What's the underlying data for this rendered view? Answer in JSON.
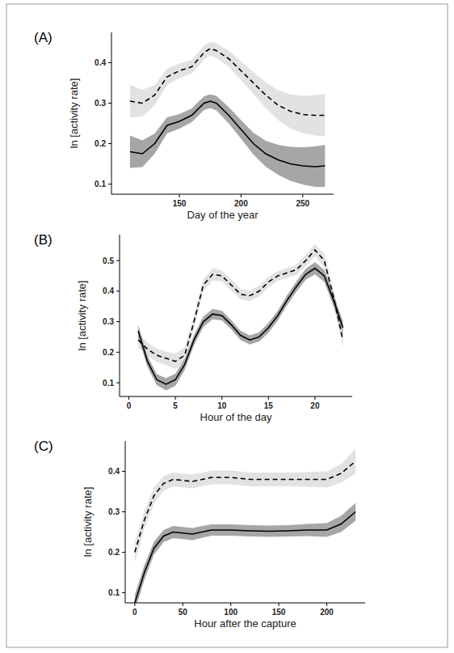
{
  "chart_data": [
    {
      "type": "line",
      "title": "(A)",
      "x_label": "Day of the year",
      "y_label": "ln [activity rate]",
      "x": [
        110,
        120,
        130,
        140,
        150,
        160,
        170,
        175,
        180,
        190,
        200,
        210,
        220,
        230,
        240,
        250,
        260,
        268
      ],
      "xlim": [
        95,
        275
      ],
      "xticks": [
        150,
        200,
        250
      ],
      "ylim": [
        0.075,
        0.475
      ],
      "yticks": [
        0.1,
        0.2,
        0.3,
        0.4
      ],
      "series": [
        {
          "color": "#000000",
          "line_style": "dashed",
          "values": [
            0.305,
            0.3,
            0.32,
            0.365,
            0.38,
            0.39,
            0.425,
            0.435,
            0.43,
            0.41,
            0.38,
            0.35,
            0.32,
            0.295,
            0.28,
            0.272,
            0.27,
            0.27
          ],
          "upper": [
            0.345,
            0.333,
            0.345,
            0.385,
            0.398,
            0.407,
            0.442,
            0.452,
            0.448,
            0.43,
            0.403,
            0.377,
            0.352,
            0.332,
            0.322,
            0.318,
            0.32,
            0.322
          ],
          "lower": [
            0.265,
            0.267,
            0.295,
            0.345,
            0.362,
            0.373,
            0.408,
            0.418,
            0.412,
            0.39,
            0.357,
            0.323,
            0.288,
            0.258,
            0.238,
            0.226,
            0.22,
            0.218
          ]
        },
        {
          "color": "#000000",
          "line_style": "solid",
          "values": [
            0.18,
            0.175,
            0.2,
            0.245,
            0.255,
            0.27,
            0.3,
            0.305,
            0.3,
            0.27,
            0.235,
            0.2,
            0.175,
            0.16,
            0.15,
            0.145,
            0.143,
            0.145
          ],
          "upper": [
            0.22,
            0.208,
            0.225,
            0.265,
            0.273,
            0.287,
            0.317,
            0.322,
            0.318,
            0.29,
            0.258,
            0.227,
            0.207,
            0.197,
            0.192,
            0.191,
            0.193,
            0.197
          ],
          "lower": [
            0.14,
            0.142,
            0.175,
            0.225,
            0.237,
            0.253,
            0.283,
            0.288,
            0.282,
            0.25,
            0.212,
            0.173,
            0.143,
            0.123,
            0.108,
            0.099,
            0.093,
            0.093
          ]
        }
      ]
    },
    {
      "type": "line",
      "title": "(B)",
      "x_label": "Hour of the day",
      "y_label": "ln [activity rate]",
      "x": [
        1,
        2,
        3,
        4,
        5,
        6,
        7,
        8,
        9,
        10,
        11,
        12,
        13,
        14,
        15,
        16,
        17,
        18,
        19,
        20,
        21,
        22,
        23
      ],
      "xlim": [
        -1,
        24
      ],
      "xticks": [
        0,
        5,
        10,
        15,
        20
      ],
      "ylim": [
        0.055,
        0.585
      ],
      "yticks": [
        0.1,
        0.2,
        0.3,
        0.4,
        0.5
      ],
      "series": [
        {
          "color": "#000000",
          "line_style": "dashed",
          "values": [
            0.24,
            0.21,
            0.19,
            0.18,
            0.17,
            0.19,
            0.3,
            0.42,
            0.455,
            0.45,
            0.42,
            0.39,
            0.385,
            0.4,
            0.43,
            0.45,
            0.46,
            0.47,
            0.5,
            0.535,
            0.5,
            0.38,
            0.24
          ],
          "upper": [
            0.265,
            0.232,
            0.212,
            0.202,
            0.195,
            0.215,
            0.322,
            0.44,
            0.475,
            0.468,
            0.438,
            0.407,
            0.402,
            0.418,
            0.447,
            0.466,
            0.476,
            0.487,
            0.518,
            0.555,
            0.522,
            0.402,
            0.265
          ],
          "lower": [
            0.215,
            0.188,
            0.168,
            0.158,
            0.145,
            0.165,
            0.278,
            0.4,
            0.435,
            0.432,
            0.402,
            0.373,
            0.368,
            0.382,
            0.413,
            0.434,
            0.444,
            0.453,
            0.482,
            0.515,
            0.478,
            0.358,
            0.215
          ]
        },
        {
          "color": "#000000",
          "line_style": "solid",
          "values": [
            0.27,
            0.17,
            0.11,
            0.095,
            0.11,
            0.16,
            0.24,
            0.3,
            0.325,
            0.32,
            0.29,
            0.255,
            0.24,
            0.25,
            0.28,
            0.32,
            0.37,
            0.415,
            0.455,
            0.475,
            0.45,
            0.37,
            0.28
          ],
          "upper": [
            0.29,
            0.188,
            0.128,
            0.115,
            0.13,
            0.178,
            0.257,
            0.317,
            0.342,
            0.336,
            0.305,
            0.27,
            0.255,
            0.265,
            0.296,
            0.336,
            0.386,
            0.432,
            0.473,
            0.495,
            0.47,
            0.39,
            0.3
          ],
          "lower": [
            0.25,
            0.152,
            0.092,
            0.075,
            0.09,
            0.142,
            0.223,
            0.283,
            0.308,
            0.304,
            0.275,
            0.24,
            0.225,
            0.235,
            0.264,
            0.304,
            0.354,
            0.398,
            0.437,
            0.455,
            0.43,
            0.35,
            0.26
          ]
        }
      ]
    },
    {
      "type": "line",
      "title": "(C)",
      "x_label": "Hour after the capture",
      "y_label": "ln [activity rate]",
      "x": [
        0,
        10,
        20,
        30,
        40,
        60,
        80,
        100,
        120,
        140,
        160,
        180,
        200,
        215,
        230
      ],
      "xlim": [
        -10,
        240
      ],
      "xticks": [
        0,
        50,
        100,
        150,
        200
      ],
      "ylim": [
        0.075,
        0.475
      ],
      "yticks": [
        0.1,
        0.2,
        0.3,
        0.4
      ],
      "series": [
        {
          "color": "#000000",
          "line_style": "dashed",
          "values": [
            0.2,
            0.28,
            0.34,
            0.37,
            0.38,
            0.375,
            0.385,
            0.385,
            0.38,
            0.38,
            0.38,
            0.38,
            0.38,
            0.395,
            0.425
          ],
          "upper": [
            0.225,
            0.302,
            0.36,
            0.388,
            0.397,
            0.392,
            0.402,
            0.402,
            0.397,
            0.397,
            0.397,
            0.398,
            0.4,
            0.418,
            0.455
          ],
          "lower": [
            0.175,
            0.258,
            0.32,
            0.352,
            0.363,
            0.358,
            0.368,
            0.368,
            0.363,
            0.363,
            0.363,
            0.362,
            0.36,
            0.372,
            0.395
          ]
        },
        {
          "color": "#000000",
          "line_style": "solid",
          "values": [
            0.075,
            0.15,
            0.21,
            0.24,
            0.25,
            0.245,
            0.255,
            0.255,
            0.253,
            0.252,
            0.253,
            0.255,
            0.255,
            0.27,
            0.3
          ],
          "upper": [
            0.095,
            0.168,
            0.226,
            0.255,
            0.265,
            0.26,
            0.269,
            0.269,
            0.267,
            0.266,
            0.267,
            0.27,
            0.272,
            0.29,
            0.322
          ],
          "lower": [
            0.055,
            0.132,
            0.194,
            0.225,
            0.235,
            0.23,
            0.241,
            0.241,
            0.239,
            0.238,
            0.239,
            0.24,
            0.238,
            0.25,
            0.278
          ]
        }
      ]
    }
  ]
}
